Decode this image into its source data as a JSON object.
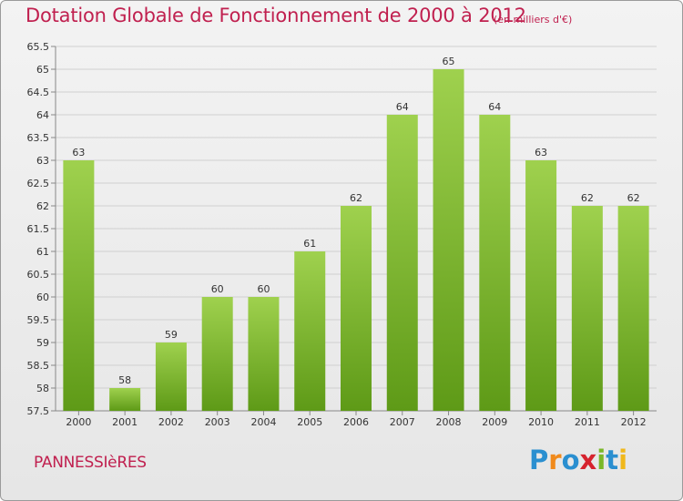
{
  "title": "Dotation Globale de Fonctionnement de 2000 à 2012",
  "unit_note": "(en milliers d'€)",
  "commune": "PANNESSIèRES",
  "logo": {
    "letters": [
      "P",
      "r",
      "o",
      "x",
      "i",
      "t",
      "i"
    ],
    "colors": [
      "#2a8fd0",
      "#f08a1c",
      "#2a8fd0",
      "#d6232e",
      "#7ab828",
      "#2a8fd0",
      "#f0b81c"
    ]
  },
  "colors": {
    "title": "#c0204f",
    "bar_top": "#9fd14e",
    "bar_bottom": "#5e9a17",
    "grid": "#d0d0d0",
    "background": "#ececec"
  },
  "chart_data": {
    "type": "bar",
    "title": "Dotation Globale de Fonctionnement de 2000 à 2012",
    "subtitle": "(en milliers d'€)",
    "xlabel": "",
    "ylabel": "",
    "categories": [
      "2000",
      "2001",
      "2002",
      "2003",
      "2004",
      "2005",
      "2006",
      "2007",
      "2008",
      "2009",
      "2010",
      "2011",
      "2012"
    ],
    "values": [
      63,
      58,
      59,
      60,
      60,
      61,
      62,
      64,
      65,
      64,
      63,
      62,
      62
    ],
    "value_labels": [
      "63",
      "58",
      "59",
      "60",
      "60",
      "61",
      "62",
      "64",
      "65",
      "64",
      "63",
      "62",
      "62"
    ],
    "ylim": [
      57.5,
      65.5
    ],
    "yticks": [
      "57.5",
      "58",
      "58.5",
      "59",
      "59.5",
      "60",
      "60.5",
      "61",
      "61.5",
      "62",
      "62.5",
      "63",
      "63.5",
      "64",
      "64.5",
      "65",
      "65.5"
    ],
    "grid": true,
    "legend": "none"
  }
}
